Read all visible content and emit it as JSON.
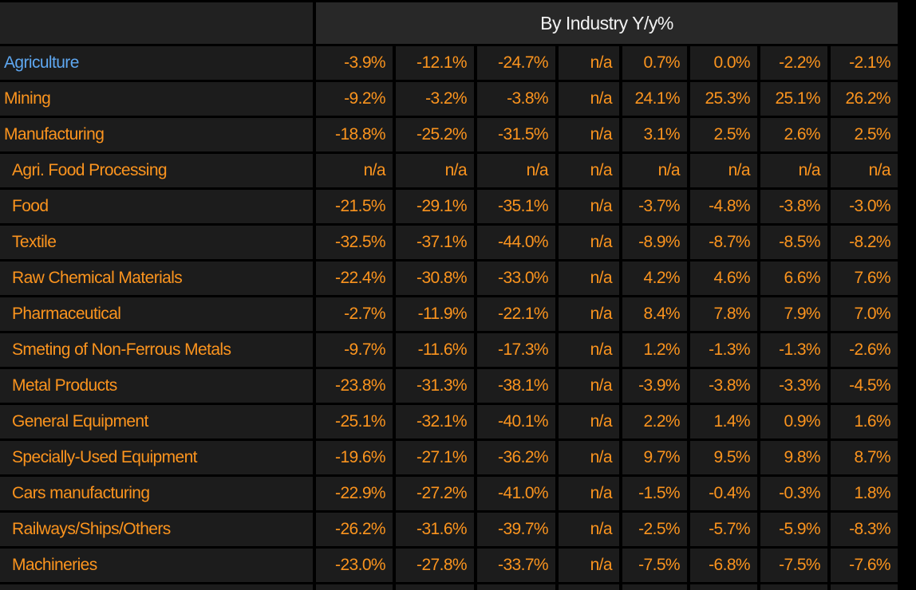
{
  "colors": {
    "background": "#000000",
    "row_background": "#1c1c1c",
    "header_background": "#282828",
    "corner_background": "#212121",
    "value_orange": "#fb941e",
    "highlight_blue": "#5ea7f0",
    "header_white": "#f2f2f2"
  },
  "table": {
    "header": "By Industry Y/y%",
    "column_count": 8,
    "rows": [
      {
        "label": "Agriculture",
        "indent": false,
        "highlight": true,
        "values": [
          "-3.9%",
          "-12.1%",
          "-24.7%",
          "n/a",
          "0.7%",
          "0.0%",
          "-2.2%",
          "-2.1%"
        ]
      },
      {
        "label": "Mining",
        "indent": false,
        "highlight": false,
        "values": [
          "-9.2%",
          "-3.2%",
          "-3.8%",
          "n/a",
          "24.1%",
          "25.3%",
          "25.1%",
          "26.2%"
        ]
      },
      {
        "label": "Manufacturing",
        "indent": false,
        "highlight": false,
        "values": [
          "-18.8%",
          "-25.2%",
          "-31.5%",
          "n/a",
          "3.1%",
          "2.5%",
          "2.6%",
          "2.5%"
        ]
      },
      {
        "label": "Agri. Food Processing",
        "indent": true,
        "highlight": false,
        "values": [
          "n/a",
          "n/a",
          "n/a",
          "n/a",
          "n/a",
          "n/a",
          "n/a",
          "n/a"
        ]
      },
      {
        "label": "Food",
        "indent": true,
        "highlight": false,
        "values": [
          "-21.5%",
          "-29.1%",
          "-35.1%",
          "n/a",
          "-3.7%",
          "-4.8%",
          "-3.8%",
          "-3.0%"
        ]
      },
      {
        "label": "Textile",
        "indent": true,
        "highlight": false,
        "values": [
          "-32.5%",
          "-37.1%",
          "-44.0%",
          "n/a",
          "-8.9%",
          "-8.7%",
          "-8.5%",
          "-8.2%"
        ]
      },
      {
        "label": "Raw Chemical Materials",
        "indent": true,
        "highlight": false,
        "values": [
          "-22.4%",
          "-30.8%",
          "-33.0%",
          "n/a",
          "4.2%",
          "4.6%",
          "6.6%",
          "7.6%"
        ]
      },
      {
        "label": "Pharmaceutical",
        "indent": true,
        "highlight": false,
        "values": [
          "-2.7%",
          "-11.9%",
          "-22.1%",
          "n/a",
          "8.4%",
          "7.8%",
          "7.9%",
          "7.0%"
        ]
      },
      {
        "label": "Smeting of Non-Ferrous Metals",
        "indent": true,
        "highlight": false,
        "values": [
          "-9.7%",
          "-11.6%",
          "-17.3%",
          "n/a",
          "1.2%",
          "-1.3%",
          "-1.3%",
          "-2.6%"
        ]
      },
      {
        "label": "Metal Products",
        "indent": true,
        "highlight": false,
        "values": [
          "-23.8%",
          "-31.3%",
          "-38.1%",
          "n/a",
          "-3.9%",
          "-3.8%",
          "-3.3%",
          "-4.5%"
        ]
      },
      {
        "label": "General Equipment",
        "indent": true,
        "highlight": false,
        "values": [
          "-25.1%",
          "-32.1%",
          "-40.1%",
          "n/a",
          "2.2%",
          "1.4%",
          "0.9%",
          "1.6%"
        ]
      },
      {
        "label": "Specially-Used Equipment",
        "indent": true,
        "highlight": false,
        "values": [
          "-19.6%",
          "-27.1%",
          "-36.2%",
          "n/a",
          "9.7%",
          "9.5%",
          "9.8%",
          "8.7%"
        ]
      },
      {
        "label": "Cars manufacturing",
        "indent": true,
        "highlight": false,
        "values": [
          "-22.9%",
          "-27.2%",
          "-41.0%",
          "n/a",
          "-1.5%",
          "-0.4%",
          "-0.3%",
          "1.8%"
        ]
      },
      {
        "label": "Railways/Ships/Others",
        "indent": true,
        "highlight": false,
        "values": [
          "-26.2%",
          "-31.6%",
          "-39.7%",
          "n/a",
          "-2.5%",
          "-5.7%",
          "-5.9%",
          "-8.3%"
        ]
      },
      {
        "label": "Machineries",
        "indent": true,
        "highlight": false,
        "values": [
          "-23.0%",
          "-27.8%",
          "-33.7%",
          "n/a",
          "-7.5%",
          "-6.8%",
          "-7.5%",
          "-7.6%"
        ]
      }
    ]
  }
}
